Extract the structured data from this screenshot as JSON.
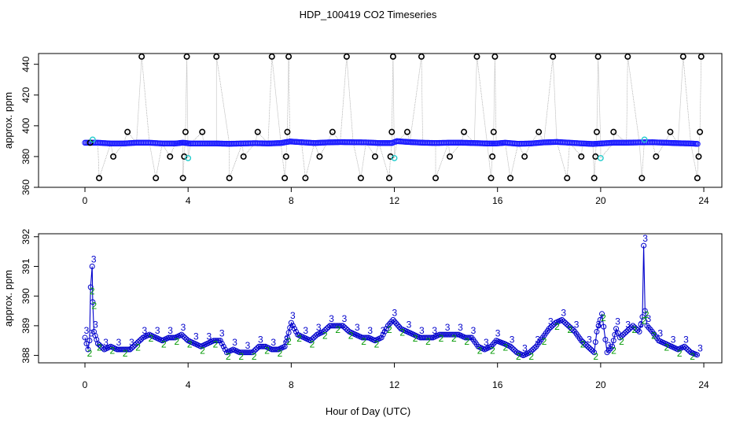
{
  "figure": {
    "title": "HDP_100419  CO2 Timeseries",
    "xlabel": "Hour of Day (UTC)"
  },
  "chart_data": [
    {
      "type": "scatter",
      "panel": "top",
      "ylabel": "approx. ppm",
      "xlim": [
        -1.8,
        24.7
      ],
      "ylim": [
        360,
        447
      ],
      "xticks": [
        "0",
        "4",
        "8",
        "12",
        "16",
        "20",
        "24"
      ],
      "yticks": [
        "360",
        "380",
        "400",
        "420",
        "440"
      ],
      "grid": false,
      "colors": {
        "baseline": "#1a1aff",
        "spike": "#000000",
        "flagged": "#22cccc",
        "connector": "#999999"
      },
      "series": [
        {
          "x": [
            0.0,
            0.5,
            1.0,
            1.5,
            2.0,
            2.5,
            3.0,
            3.5,
            3.8,
            4.1,
            4.6,
            5.1,
            5.6,
            6.1,
            6.6,
            7.1,
            7.6,
            7.95,
            8.4,
            8.9,
            9.4,
            9.9,
            10.4,
            10.9,
            11.4,
            11.9,
            12.1,
            12.6,
            13.1,
            13.6,
            14.1,
            14.6,
            15.1,
            15.6,
            15.95,
            16.3,
            16.8,
            17.3,
            17.8,
            18.3,
            18.8,
            19.3,
            19.7,
            20.0,
            20.5,
            21.0,
            21.5,
            22.0,
            22.5,
            23.0,
            23.5,
            23.8
          ],
          "values": [
            389,
            389,
            388.5,
            388.5,
            389,
            389,
            388.5,
            388.5,
            389,
            388.5,
            388.5,
            388.5,
            388.3,
            388.5,
            388.7,
            388.5,
            388.8,
            389.8,
            389.3,
            388.8,
            389.2,
            389.4,
            389.3,
            389.2,
            388.8,
            388.8,
            390,
            389.4,
            389,
            388.8,
            389,
            389,
            388.8,
            388.5,
            388.5,
            389,
            388.3,
            388.5,
            389.2,
            389.5,
            389,
            388.5,
            388.2,
            388.5,
            389,
            389,
            389.2,
            389.3,
            389,
            388.7,
            388.5,
            388.2
          ]
        },
        {
          "x": [
            0.2,
            0.55,
            1.1,
            1.65,
            2.2,
            2.75,
            3.3,
            3.8,
            3.85,
            3.9,
            3.95,
            4.55,
            5.1,
            5.6,
            6.15,
            6.7,
            7.25,
            7.75,
            7.8,
            7.85,
            7.9,
            8.55,
            9.1,
            9.6,
            10.15,
            10.7,
            11.25,
            11.8,
            11.85,
            11.9,
            11.95,
            12.5,
            13.05,
            13.6,
            14.15,
            14.7,
            15.2,
            15.75,
            15.8,
            15.85,
            15.9,
            16.5,
            17.05,
            17.6,
            18.15,
            18.7,
            19.25,
            19.75,
            19.8,
            19.85,
            19.9,
            20.5,
            21.05,
            21.6,
            22.15,
            22.7,
            23.2,
            23.75,
            23.8,
            23.85,
            23.9
          ],
          "values": [
            389,
            366,
            380,
            396,
            445,
            366,
            380,
            366,
            380,
            396,
            445,
            396,
            445,
            366,
            380,
            396,
            445,
            366,
            380,
            396,
            445,
            366,
            380,
            396,
            445,
            366,
            380,
            366,
            380,
            396,
            445,
            396,
            445,
            366,
            380,
            396,
            445,
            366,
            380,
            396,
            445,
            366,
            380,
            396,
            445,
            366,
            380,
            366,
            380,
            396,
            445,
            396,
            445,
            366,
            380,
            396,
            445,
            366,
            380,
            396,
            445
          ]
        },
        {
          "x": [
            0.3,
            4.0,
            12.0,
            20.0,
            21.7
          ],
          "values": [
            391,
            379,
            379,
            379,
            391
          ]
        }
      ]
    },
    {
      "type": "line",
      "panel": "bottom",
      "ylabel": "approx. ppm",
      "xlim": [
        -1.8,
        24.7
      ],
      "ylim": [
        387.75,
        392.1
      ],
      "xticks": [
        "0",
        "4",
        "8",
        "12",
        "16",
        "20",
        "24"
      ],
      "yticks": [
        "388",
        "389",
        "390",
        "391",
        "392"
      ],
      "grid": false,
      "point_labels": [
        "3",
        "2"
      ],
      "colors": {
        "line": "#0000cc",
        "point_2": "#009900",
        "point_3": "#0000cc",
        "circle": "#0000cc"
      },
      "series": [
        {
          "x": [
            0.0,
            0.12,
            0.18,
            0.22,
            0.28,
            0.3,
            0.35,
            0.5,
            0.75,
            1.0,
            1.25,
            1.5,
            1.75,
            2.0,
            2.25,
            2.5,
            2.75,
            3.0,
            3.25,
            3.5,
            3.75,
            4.0,
            4.25,
            4.5,
            4.75,
            5.0,
            5.25,
            5.5,
            5.75,
            6.0,
            6.25,
            6.5,
            6.75,
            7.0,
            7.25,
            7.5,
            7.75,
            7.85,
            8.0,
            8.25,
            8.5,
            8.75,
            9.0,
            9.25,
            9.5,
            9.75,
            10.0,
            10.25,
            10.5,
            10.75,
            11.0,
            11.25,
            11.5,
            11.75,
            11.95,
            12.25,
            12.5,
            12.75,
            13.0,
            13.25,
            13.5,
            13.75,
            14.0,
            14.25,
            14.5,
            14.75,
            15.0,
            15.25,
            15.5,
            15.75,
            15.95,
            16.25,
            16.5,
            16.75,
            17.0,
            17.25,
            17.5,
            17.75,
            18.0,
            18.25,
            18.5,
            18.75,
            19.0,
            19.25,
            19.5,
            19.75,
            19.85,
            20.05,
            20.25,
            20.45,
            20.6,
            20.75,
            21.0,
            21.25,
            21.5,
            21.62,
            21.67,
            21.72,
            21.8,
            22.0,
            22.25,
            22.5,
            22.75,
            23.0,
            23.25,
            23.5,
            23.8
          ],
          "values": [
            388.6,
            388.2,
            388.5,
            390.3,
            391.0,
            389.8,
            388.8,
            388.4,
            388.2,
            388.3,
            388.2,
            388.2,
            388.2,
            388.4,
            388.6,
            388.7,
            388.6,
            388.5,
            388.6,
            388.6,
            388.7,
            388.5,
            388.4,
            388.3,
            388.4,
            388.5,
            388.5,
            388.1,
            388.2,
            388.1,
            388.1,
            388.1,
            388.3,
            388.3,
            388.2,
            388.2,
            388.3,
            388.6,
            389.1,
            388.7,
            388.6,
            388.5,
            388.7,
            388.8,
            389.0,
            389.0,
            389.0,
            388.8,
            388.7,
            388.6,
            388.6,
            388.5,
            388.6,
            389.0,
            389.2,
            388.9,
            388.8,
            388.7,
            388.6,
            388.6,
            388.6,
            388.7,
            388.7,
            388.7,
            388.7,
            388.6,
            388.6,
            388.3,
            388.2,
            388.3,
            388.5,
            388.4,
            388.3,
            388.1,
            388.0,
            388.1,
            388.3,
            388.6,
            388.9,
            389.1,
            389.2,
            389.0,
            388.8,
            388.5,
            388.3,
            388.1,
            388.8,
            389.4,
            388.1,
            388.3,
            388.9,
            388.6,
            388.8,
            389.0,
            388.8,
            389.3,
            391.7,
            389.5,
            389.0,
            388.8,
            388.5,
            388.4,
            388.3,
            388.2,
            388.3,
            388.1,
            388.0
          ]
        }
      ]
    }
  ]
}
